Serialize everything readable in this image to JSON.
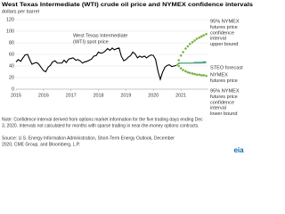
{
  "chart_data": {
    "type": "line",
    "title": "West Texas Intermediate (WTI) crude oil price and NYMEX confidence intervals",
    "subtitle": "dollars per barrel",
    "xlim": [
      2015,
      2022
    ],
    "xticks": [
      2015,
      2016,
      2017,
      2018,
      2019,
      2020,
      2021
    ],
    "ylim": [
      0,
      120
    ],
    "yticks": [
      0,
      20,
      40,
      60,
      80,
      100,
      120
    ],
    "grid": true,
    "series": [
      {
        "name": [
          "West Texas Intermediate",
          "(WTI) spot price"
        ],
        "color": "#000000",
        "style": "line",
        "x": [
          2015.0,
          2015.08,
          2015.17,
          2015.25,
          2015.33,
          2015.42,
          2015.5,
          2015.58,
          2015.67,
          2015.75,
          2015.83,
          2015.92,
          2016.0,
          2016.08,
          2016.17,
          2016.25,
          2016.33,
          2016.42,
          2016.5,
          2016.58,
          2016.67,
          2016.75,
          2016.83,
          2016.92,
          2017.0,
          2017.08,
          2017.17,
          2017.25,
          2017.33,
          2017.42,
          2017.5,
          2017.58,
          2017.67,
          2017.75,
          2017.83,
          2017.92,
          2018.0,
          2018.08,
          2018.17,
          2018.25,
          2018.33,
          2018.42,
          2018.5,
          2018.58,
          2018.67,
          2018.75,
          2018.83,
          2018.92,
          2019.0,
          2019.08,
          2019.17,
          2019.25,
          2019.33,
          2019.42,
          2019.5,
          2019.58,
          2019.67,
          2019.75,
          2019.83,
          2019.92,
          2020.0,
          2020.08,
          2020.17,
          2020.25,
          2020.33,
          2020.42,
          2020.5,
          2020.58,
          2020.67,
          2020.75,
          2020.83
        ],
        "values": [
          47,
          51,
          48,
          54,
          59,
          60,
          51,
          43,
          45,
          46,
          43,
          37,
          32,
          30,
          38,
          41,
          47,
          49,
          45,
          45,
          45,
          50,
          46,
          52,
          53,
          54,
          50,
          51,
          49,
          45,
          47,
          48,
          50,
          52,
          57,
          58,
          64,
          62,
          63,
          66,
          70,
          67,
          71,
          68,
          70,
          71,
          57,
          49,
          51,
          55,
          58,
          64,
          61,
          54,
          57,
          55,
          57,
          54,
          57,
          59,
          58,
          51,
          30,
          17,
          29,
          38,
          41,
          42,
          39,
          40,
          41
        ]
      },
      {
        "name": [
          "95% NYMEX",
          "futures price",
          "confidence",
          "interval",
          "upper bound"
        ],
        "color": "#7cb342",
        "style": "dots",
        "x": [
          2020.92,
          2021.0,
          2021.08,
          2021.17,
          2021.25,
          2021.33,
          2021.42,
          2021.5,
          2021.58,
          2021.67,
          2021.75,
          2021.83,
          2021.92
        ],
        "values": [
          50,
          58,
          64,
          70,
          74,
          78,
          81,
          84,
          87,
          89,
          91,
          93,
          95
        ]
      },
      {
        "name": [
          "STEO forecast"
        ],
        "color": "#2b7bbf",
        "style": "line",
        "x": [
          2020.83,
          2020.92,
          2021.0,
          2021.08,
          2021.17,
          2021.25,
          2021.33,
          2021.42,
          2021.5,
          2021.58,
          2021.67,
          2021.75,
          2021.83,
          2021.92
        ],
        "values": [
          41,
          45,
          45,
          45,
          45,
          45,
          45,
          45,
          46,
          46,
          46,
          46,
          47,
          47
        ]
      },
      {
        "name": [
          "NYMEX",
          "futures price"
        ],
        "color": "#4caf50",
        "style": "line",
        "x": [
          2020.83,
          2020.92,
          2021.0,
          2021.08,
          2021.17,
          2021.25,
          2021.33,
          2021.42,
          2021.5,
          2021.58,
          2021.67,
          2021.75,
          2021.83,
          2021.92
        ],
        "values": [
          41,
          44,
          45,
          45,
          45,
          45,
          45,
          45,
          45,
          45,
          45,
          45,
          45,
          45
        ]
      },
      {
        "name": [
          "95% NYMEX",
          "futures price",
          "confidence",
          "interval",
          "lower bound"
        ],
        "color": "#7cb342",
        "style": "dots",
        "x": [
          2020.92,
          2021.0,
          2021.08,
          2021.17,
          2021.25,
          2021.33,
          2021.42,
          2021.5,
          2021.58,
          2021.67,
          2021.75,
          2021.83,
          2021.92
        ],
        "values": [
          40,
          36,
          33,
          31,
          29,
          28,
          27,
          26,
          25,
          25,
          24,
          24,
          23
        ]
      }
    ],
    "note": [
      "Note: Confidence interval derived from options market information for the five trading days ending Dec",
      "3, 2020. Intervals not calculated for months with sparse trading in near-the-money options contracts."
    ],
    "source": [
      "Source: U.S. Energy Information Administration, Short-Term Energy Outlook, December",
      "2020, CME Group, and Bloomberg, L.P."
    ],
    "logo": "eia"
  }
}
